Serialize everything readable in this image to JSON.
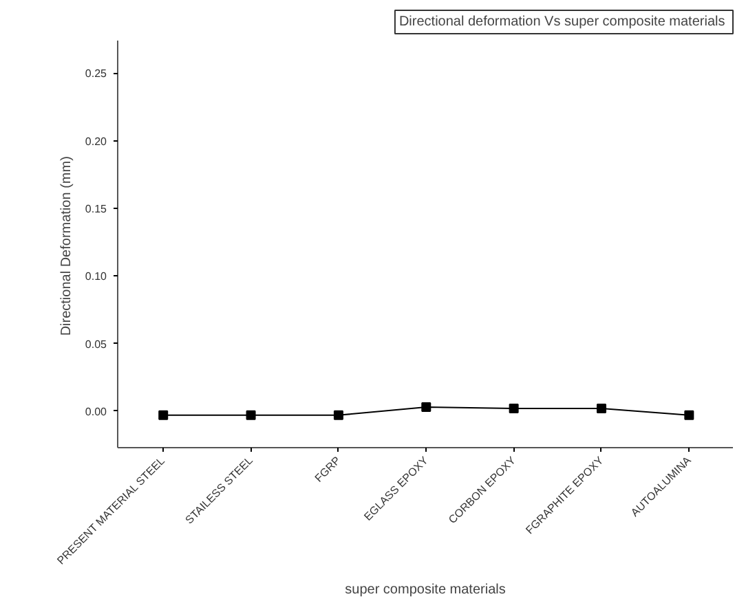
{
  "chart_data": {
    "type": "line",
    "title": "Directional deformation  Vs super composite materials",
    "xlabel": "super composite materials",
    "ylabel": "Directional  Deformation (mm)",
    "categories": [
      "PRESENT MATERIAL STEEL",
      "STAILESS STEEL",
      "FGRP",
      "EGLASS EPOXY",
      "CORBON EPOXY",
      "FGRAPHITE EPOXY",
      "AUTOALUMINA"
    ],
    "series": [
      {
        "color": "#000000",
        "values": [
          -0.003,
          -0.003,
          -0.003,
          0.003,
          0.002,
          0.002,
          -0.003
        ]
      }
    ],
    "ylim": [
      -0.027,
      0.274
    ],
    "yticks": [
      {
        "value": 0,
        "label": "0.00"
      },
      {
        "value": 0.05,
        "label": "0.05"
      },
      {
        "value": 0.1,
        "label": "0.10"
      },
      {
        "value": 0.15,
        "label": "0.15"
      },
      {
        "value": 0.2,
        "label": "0.20"
      },
      {
        "value": 0.25,
        "label": "0.25"
      }
    ],
    "marker": "square",
    "line_style": "solid",
    "grid": false
  }
}
